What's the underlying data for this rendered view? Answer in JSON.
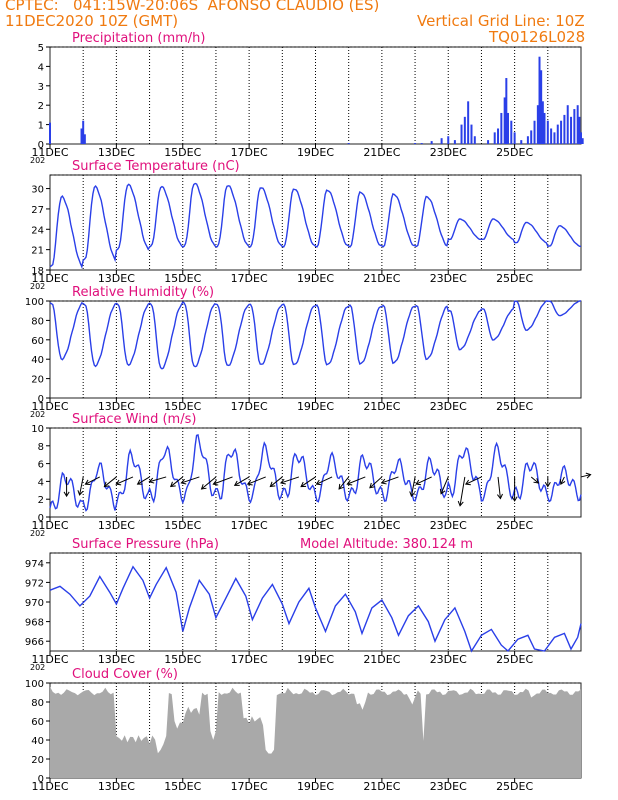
{
  "header": {
    "line1": "CPTEC:   041:15W-20:06S  AFONSO CLAUDIO (ES)",
    "line2": "11DEC2020 10Z (GMT)",
    "grid_note": "Vertical Grid Line: 10Z",
    "code": "TQ0126L028"
  },
  "x_axis": {
    "tick_labels": [
      "11DEC",
      "13DEC",
      "15DEC",
      "17DEC",
      "19DEC",
      "21DEC",
      "23DEC",
      "25DEC"
    ],
    "tick_days": [
      0,
      2,
      4,
      6,
      8,
      10,
      12,
      14
    ],
    "extra_label": "202"
  },
  "colors": {
    "line": "#2a3fe8",
    "title": "#e0107c",
    "header": "#f07a10",
    "cloud": "#a9a9a9",
    "grid": "#222222"
  },
  "model_altitude": "Model Altitude: 380.124 m",
  "chart_data": [
    {
      "type": "bar",
      "title": "Precipitation (mm/h)",
      "ylim": [
        0,
        5
      ],
      "yticks": [
        0,
        1,
        2,
        3,
        4,
        5
      ],
      "bars": [
        [
          0,
          1.1
        ],
        [
          0.95,
          0.8
        ],
        [
          1.0,
          1.2
        ],
        [
          1.05,
          0.5
        ],
        [
          9.0,
          0.05
        ],
        [
          11.0,
          0.05
        ],
        [
          11.2,
          0.05
        ],
        [
          11.5,
          0.15
        ],
        [
          11.8,
          0.3
        ],
        [
          12.0,
          0.4
        ],
        [
          12.2,
          0.2
        ],
        [
          12.4,
          1.0
        ],
        [
          12.5,
          1.4
        ],
        [
          12.6,
          2.2
        ],
        [
          12.7,
          1.0
        ],
        [
          12.8,
          0.4
        ],
        [
          13.2,
          0.2
        ],
        [
          13.4,
          0.6
        ],
        [
          13.5,
          0.8
        ],
        [
          13.6,
          1.6
        ],
        [
          13.7,
          2.4
        ],
        [
          13.75,
          3.4
        ],
        [
          13.8,
          1.6
        ],
        [
          13.9,
          1.2
        ],
        [
          14.0,
          0.6
        ],
        [
          14.2,
          0.2
        ],
        [
          14.4,
          0.4
        ],
        [
          14.5,
          0.7
        ],
        [
          14.6,
          1.2
        ],
        [
          14.7,
          2.0
        ],
        [
          14.75,
          4.5
        ],
        [
          14.8,
          3.8
        ],
        [
          14.85,
          2.2
        ],
        [
          14.9,
          1.6
        ],
        [
          15.0,
          1.2
        ],
        [
          15.1,
          0.8
        ],
        [
          15.2,
          0.6
        ],
        [
          15.3,
          1.0
        ],
        [
          15.4,
          1.2
        ],
        [
          15.5,
          1.5
        ],
        [
          15.6,
          2.0
        ],
        [
          15.7,
          1.4
        ],
        [
          15.8,
          1.8
        ],
        [
          15.9,
          2.0
        ],
        [
          15.95,
          1.4
        ],
        [
          16.0,
          0.6
        ],
        [
          16.05,
          0.3
        ]
      ]
    },
    {
      "type": "line",
      "title": "Surface Temperature (nC)",
      "ylim": [
        18,
        32
      ],
      "yticks": [
        18,
        21,
        24,
        27,
        30
      ],
      "daily_max": [
        28.8,
        30.3,
        30.6,
        30.3,
        30.8,
        30.5,
        30.2,
        30.0,
        29.8,
        29.5,
        29.2,
        28.8,
        25.5,
        25.5,
        25.0,
        24.5
      ],
      "daily_min": [
        18.5,
        19.5,
        21.0,
        21.5,
        21.5,
        21.5,
        21.5,
        21.5,
        21.5,
        21.5,
        21.5,
        21.5,
        22.5,
        22.5,
        22.0,
        21.5
      ]
    },
    {
      "type": "line",
      "title": "Relative Humidity (%)",
      "ylim": [
        0,
        100
      ],
      "yticks": [
        0,
        20,
        40,
        60,
        80,
        100
      ],
      "daily_min": [
        40,
        33,
        34,
        30,
        32,
        33,
        34,
        34,
        34,
        35,
        36,
        40,
        50,
        60,
        70,
        85
      ],
      "daily_max": [
        98,
        97,
        97,
        97,
        98,
        96,
        96,
        96,
        95,
        95,
        95,
        95,
        90,
        92,
        100,
        100
      ]
    },
    {
      "type": "line",
      "title": "Surface Wind (m/s)",
      "ylim": [
        0,
        10
      ],
      "yticks": [
        0,
        2,
        4,
        6,
        8,
        10
      ],
      "daily_max": [
        4.5,
        5.5,
        6.8,
        7.5,
        8.5,
        7.5,
        7.5,
        7.0,
        6.5,
        6.5,
        6.0,
        6.0,
        7.5,
        7.5,
        6.0,
        5.0
      ],
      "daily_min": [
        1.0,
        1.5,
        2.0,
        2.5,
        2.5,
        2.5,
        2.5,
        2.5,
        2.5,
        2.5,
        2.5,
        2.5,
        3.0,
        2.5,
        2.5,
        2.5
      ],
      "vectors": [
        [
          0.5,
          0,
          -1.6
        ],
        [
          1.0,
          -0.3,
          -1.5
        ],
        [
          1.5,
          -1.2,
          -0.6
        ],
        [
          2.0,
          -1.0,
          -0.8
        ],
        [
          2.5,
          -1.4,
          -0.6
        ],
        [
          3.0,
          -1.0,
          -0.6
        ],
        [
          3.5,
          -1.4,
          -0.4
        ],
        [
          4.0,
          -1.0,
          -0.8
        ],
        [
          4.5,
          -1.5,
          -0.5
        ],
        [
          5.0,
          -1.2,
          -1.0
        ],
        [
          5.5,
          -1.6,
          -0.6
        ],
        [
          6.0,
          -1.2,
          -0.7
        ],
        [
          6.5,
          -1.5,
          -0.6
        ],
        [
          7.0,
          -1.0,
          -0.8
        ],
        [
          7.5,
          -1.5,
          -0.5
        ],
        [
          8.0,
          -1.2,
          -0.8
        ],
        [
          8.5,
          -1.3,
          -0.6
        ],
        [
          9.0,
          -0.8,
          -1.0
        ],
        [
          9.5,
          -1.5,
          -0.6
        ],
        [
          10.0,
          -1.0,
          -0.9
        ],
        [
          10.5,
          -1.4,
          -0.5
        ],
        [
          11.0,
          -0.3,
          -1.6
        ],
        [
          11.5,
          -1.3,
          -0.6
        ],
        [
          12.0,
          -0.6,
          -1.4
        ],
        [
          12.5,
          -0.4,
          -2.4
        ],
        [
          13.0,
          -1.3,
          -0.6
        ],
        [
          13.5,
          0.2,
          -1.8
        ],
        [
          14.0,
          0,
          -2.0
        ],
        [
          14.5,
          0.6,
          -0.5
        ],
        [
          15.0,
          0,
          -0.8
        ],
        [
          15.5,
          -0.3,
          -0.6
        ],
        [
          16.0,
          0.8,
          0.2
        ]
      ]
    },
    {
      "type": "line",
      "title": "Surface Pressure (hPa)",
      "ylim": [
        965,
        975
      ],
      "yticks": [
        966,
        968,
        970,
        972,
        974
      ],
      "points": [
        [
          0,
          971.2
        ],
        [
          0.3,
          971.6
        ],
        [
          0.6,
          970.8
        ],
        [
          0.9,
          969.6
        ],
        [
          1.2,
          970.6
        ],
        [
          1.5,
          972.6
        ],
        [
          1.8,
          971.0
        ],
        [
          2.0,
          969.8
        ],
        [
          2.2,
          971.4
        ],
        [
          2.5,
          973.6
        ],
        [
          2.8,
          972.2
        ],
        [
          3.0,
          970.4
        ],
        [
          3.2,
          971.8
        ],
        [
          3.5,
          973.5
        ],
        [
          3.8,
          971.0
        ],
        [
          4.0,
          967.0
        ],
        [
          4.2,
          969.4
        ],
        [
          4.5,
          972.2
        ],
        [
          4.8,
          970.8
        ],
        [
          5.0,
          968.4
        ],
        [
          5.3,
          970.4
        ],
        [
          5.6,
          972.4
        ],
        [
          5.9,
          970.6
        ],
        [
          6.1,
          968.2
        ],
        [
          6.4,
          970.4
        ],
        [
          6.7,
          971.8
        ],
        [
          7.0,
          969.8
        ],
        [
          7.2,
          967.8
        ],
        [
          7.5,
          970.0
        ],
        [
          7.8,
          971.4
        ],
        [
          8.0,
          969.4
        ],
        [
          8.3,
          967.0
        ],
        [
          8.6,
          969.6
        ],
        [
          8.9,
          970.8
        ],
        [
          9.2,
          969.0
        ],
        [
          9.4,
          966.8
        ],
        [
          9.7,
          969.4
        ],
        [
          10.0,
          970.2
        ],
        [
          10.3,
          968.4
        ],
        [
          10.5,
          966.6
        ],
        [
          10.8,
          968.6
        ],
        [
          11.1,
          969.6
        ],
        [
          11.4,
          968.0
        ],
        [
          11.6,
          966.0
        ],
        [
          11.9,
          968.2
        ],
        [
          12.2,
          969.4
        ],
        [
          12.5,
          967.0
        ],
        [
          12.7,
          965.0
        ],
        [
          13.0,
          966.6
        ],
        [
          13.3,
          967.2
        ],
        [
          13.6,
          965.6
        ],
        [
          13.8,
          964.6
        ],
        [
          14.1,
          966.2
        ],
        [
          14.4,
          966.6
        ],
        [
          14.6,
          965.2
        ],
        [
          14.9,
          964.8
        ],
        [
          15.2,
          966.4
        ],
        [
          15.5,
          966.8
        ],
        [
          15.7,
          965.2
        ],
        [
          15.9,
          966.4
        ],
        [
          16.0,
          967.8
        ]
      ]
    },
    {
      "type": "area",
      "title": "Cloud Cover (%)",
      "ylim": [
        0,
        100
      ],
      "yticks": [
        0,
        20,
        40,
        60,
        80,
        100
      ],
      "dips": [
        [
          2.0,
          3.5,
          35
        ],
        [
          3.2,
          3.4,
          20
        ],
        [
          3.7,
          4.0,
          50
        ],
        [
          4.0,
          4.5,
          65
        ],
        [
          4.8,
          5.0,
          40
        ],
        [
          5.8,
          6.5,
          55
        ],
        [
          6.5,
          6.8,
          20
        ],
        [
          7.0,
          7.2,
          85
        ],
        [
          8.8,
          9.0,
          95
        ],
        [
          9.2,
          9.5,
          70
        ],
        [
          10.8,
          11.0,
          75
        ],
        [
          11.2,
          11.3,
          30
        ],
        [
          14.5,
          14.6,
          80
        ]
      ]
    }
  ]
}
